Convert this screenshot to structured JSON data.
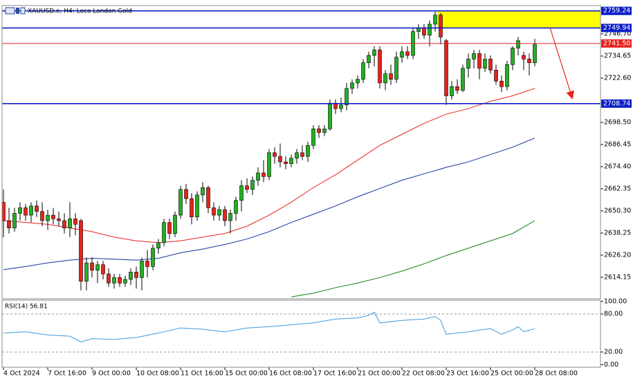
{
  "chart_data": [
    {
      "type": "candlestick",
      "title": "XAUUSD.e, H4: Loco London Gold",
      "categories": [
        "4 Oct 2024",
        null,
        null,
        null,
        null,
        null,
        null,
        null,
        "7 Oct 16:00",
        null,
        null,
        null,
        null,
        null,
        null,
        null,
        "9 Oct 00:00",
        null,
        null,
        null,
        null,
        null,
        null,
        null,
        "10 Oct 08:00",
        null,
        null,
        null,
        null,
        null,
        null,
        null,
        "11 Oct 16:00",
        null,
        null,
        null,
        null,
        null,
        null,
        null,
        "15 Oct 00:00",
        null,
        null,
        null,
        null,
        null,
        null,
        null,
        "16 Oct 08:00",
        null,
        null,
        null,
        null,
        null,
        null,
        null,
        "17 Oct 16:00",
        null,
        null,
        null,
        null,
        null,
        null,
        null,
        "21 Oct 00:00",
        null,
        null,
        null,
        null,
        null,
        null,
        null,
        "22 Oct 08:00",
        null,
        null,
        null,
        null,
        null,
        null,
        null,
        "23 Oct 16:00",
        null,
        null,
        null,
        null,
        null,
        null,
        null,
        "25 Oct 00:00",
        null,
        null,
        null,
        null,
        null,
        null,
        null,
        "28 Oct 08:00"
      ],
      "open": [
        2655,
        2645,
        2641,
        2649,
        2652,
        2648,
        2653,
        2650,
        2645,
        2648,
        2646,
        2645,
        2641,
        2646,
        2645,
        2612,
        2622,
        2618,
        2621,
        2616,
        2611,
        2614,
        2611,
        2613,
        2617,
        2614,
        2623,
        2620,
        2630,
        2633,
        2644,
        2638,
        2648,
        2662,
        2657,
        2647,
        2659,
        2663,
        2652,
        2648,
        2651,
        2645,
        2649,
        2656,
        2664,
        2662,
        2667,
        2671,
        2669,
        2682,
        2680,
        2677,
        2676,
        2679,
        2682,
        2680,
        2686,
        2695,
        2693,
        2695,
        2709,
        2706,
        2708,
        2717,
        2720,
        2722,
        2731,
        2735,
        2738,
        2720,
        2725,
        2722,
        2734,
        2737,
        2735,
        2748,
        2750,
        2746,
        2752,
        2757,
        2743,
        2713,
        2718,
        2716,
        2728,
        2733,
        2736,
        2728,
        2733,
        2727,
        2721,
        2718,
        2730,
        2739,
        2735,
        2733,
        2731
      ],
      "high": [
        2662,
        2652,
        2652,
        2655,
        2654,
        2655,
        2656,
        2655,
        2651,
        2652,
        2650,
        2649,
        2655,
        2649,
        2646,
        2625,
        2625,
        2623,
        2623,
        2619,
        2616,
        2616,
        2615,
        2619,
        2620,
        2625,
        2629,
        2632,
        2635,
        2646,
        2646,
        2650,
        2664,
        2665,
        2660,
        2661,
        2666,
        2664,
        2655,
        2653,
        2653,
        2651,
        2658,
        2667,
        2668,
        2669,
        2674,
        2678,
        2684,
        2685,
        2687,
        2680,
        2681,
        2684,
        2686,
        2688,
        2697,
        2697,
        2697,
        2711,
        2711,
        2712,
        2720,
        2722,
        2724,
        2733,
        2737,
        2740,
        2740,
        2727,
        2730,
        2737,
        2740,
        2740,
        2750,
        2752,
        2752,
        2754,
        2759,
        2758,
        2744,
        2721,
        2722,
        2730,
        2736,
        2738,
        2738,
        2736,
        2735,
        2730,
        2724,
        2732,
        2740,
        2745,
        2737,
        2736,
        2744
      ],
      "low": [
        2636,
        2638,
        2639,
        2645,
        2645,
        2644,
        2647,
        2642,
        2640,
        2643,
        2642,
        2638,
        2636,
        2637,
        2607,
        2607,
        2614,
        2611,
        2613,
        2609,
        2608,
        2609,
        2609,
        2610,
        2608,
        2607,
        2614,
        2618,
        2627,
        2631,
        2635,
        2636,
        2646,
        2654,
        2643,
        2645,
        2655,
        2649,
        2645,
        2645,
        2642,
        2638,
        2645,
        2650,
        2660,
        2659,
        2664,
        2666,
        2667,
        2676,
        2674,
        2673,
        2674,
        2676,
        2678,
        2677,
        2684,
        2690,
        2691,
        2694,
        2703,
        2704,
        2705,
        2714,
        2717,
        2720,
        2728,
        2729,
        2717,
        2716,
        2719,
        2720,
        2731,
        2733,
        2733,
        2744,
        2744,
        2740,
        2748,
        2741,
        2708,
        2711,
        2714,
        2715,
        2723,
        2728,
        2722,
        2726,
        2725,
        2719,
        2715,
        2716,
        2727,
        2735,
        2727,
        2724,
        2729
      ],
      "close": [
        2645,
        2641,
        2649,
        2652,
        2648,
        2653,
        2650,
        2645,
        2648,
        2646,
        2645,
        2641,
        2646,
        2643,
        2612,
        2622,
        2618,
        2621,
        2616,
        2611,
        2614,
        2611,
        2613,
        2617,
        2614,
        2623,
        2620,
        2630,
        2633,
        2644,
        2638,
        2648,
        2662,
        2657,
        2647,
        2659,
        2663,
        2652,
        2648,
        2651,
        2645,
        2649,
        2656,
        2664,
        2662,
        2667,
        2671,
        2669,
        2682,
        2680,
        2677,
        2676,
        2679,
        2682,
        2680,
        2686,
        2695,
        2693,
        2695,
        2709,
        2706,
        2708,
        2717,
        2720,
        2722,
        2731,
        2735,
        2738,
        2720,
        2725,
        2722,
        2734,
        2737,
        2735,
        2748,
        2750,
        2746,
        2752,
        2757,
        2745,
        2713,
        2718,
        2716,
        2728,
        2733,
        2736,
        2728,
        2733,
        2727,
        2721,
        2718,
        2730,
        2739,
        2743,
        2733,
        2731,
        2741
      ],
      "up_color": "#22b022",
      "down_color": "#e8231c",
      "series": [
        {
          "color": "#e8231c",
          "x": [
            0,
            4,
            8,
            12,
            16,
            20,
            24,
            28,
            32,
            36,
            40,
            44,
            48,
            52,
            56,
            60,
            64,
            68,
            72,
            76,
            80,
            84,
            88,
            92,
            96
          ],
          "values": [
            2645,
            2644,
            2643,
            2641,
            2639,
            2636,
            2634,
            2633,
            2634,
            2636,
            2638,
            2642,
            2648,
            2655,
            2663,
            2670,
            2678,
            2686,
            2692,
            2698,
            2703,
            2706,
            2710,
            2713,
            2717
          ]
        },
        {
          "color": "#1030a0",
          "x": [
            0,
            4,
            8,
            12,
            16,
            20,
            24,
            28,
            32,
            36,
            40,
            44,
            48,
            52,
            56,
            60,
            64,
            68,
            72,
            76,
            80,
            84,
            88,
            92,
            96
          ],
          "values": [
            2618.3,
            2620,
            2622,
            2623.5,
            2624.5,
            2624,
            2623.5,
            2624.5,
            2627.5,
            2629.5,
            2632,
            2635,
            2639,
            2644,
            2648.5,
            2653,
            2658,
            2662.5,
            2667,
            2670.5,
            2674,
            2677,
            2681,
            2685,
            2690
          ]
        },
        {
          "color": "#108010",
          "x": [
            52,
            56,
            60,
            64,
            68,
            72,
            76,
            80,
            84,
            88,
            92,
            96
          ],
          "values": [
            2603.5,
            2605.5,
            2608.5,
            2611,
            2614,
            2617.5,
            2621.5,
            2626,
            2630,
            2634,
            2638,
            2645
          ]
        }
      ],
      "levels": [
        {
          "value": 2759.24,
          "color": "#0a1ec8"
        },
        {
          "value": 2749.94,
          "color": "#0a1ec8"
        },
        {
          "value": 2741.5,
          "label": "2741.50",
          "color": "#e8231c"
        },
        {
          "value": 2708.74,
          "color": "#0a1ec8"
        }
      ],
      "zone": {
        "from": 2749.94,
        "to": 2759.24,
        "color": "#ffff00"
      },
      "ylim": [
        2603.2,
        2761.4
      ],
      "yticks": [
        {
          "value": 2746.7,
          "label": "2746.70"
        },
        2734.65,
        {
          "value": 2722.6,
          "label": "2722.60"
        },
        {
          "value": 2698.5,
          "label": "2698.50"
        },
        2686.45,
        {
          "value": 2674.4,
          "label": "2674.40"
        },
        2662.35,
        {
          "value": 2650.3,
          "label": "2650.30"
        },
        2638.25,
        {
          "value": 2626.2,
          "label": "2626.20"
        },
        2614.15
      ]
    },
    {
      "type": "line",
      "title": "RSI(14) 56.81",
      "series": [
        {
          "color": "#3a9ad9",
          "x": [
            0,
            4,
            8,
            12,
            14,
            16,
            20,
            24,
            28,
            32,
            36,
            40,
            44,
            48,
            52,
            56,
            60,
            64,
            66,
            67,
            68,
            72,
            76,
            78,
            79,
            80,
            84,
            88,
            90,
            92,
            93,
            94,
            96
          ],
          "values": [
            50,
            52,
            47,
            45,
            36,
            41,
            40,
            43,
            50,
            58,
            56,
            52,
            58,
            60,
            63,
            66,
            72,
            74,
            78,
            83,
            66,
            70,
            72,
            76,
            70,
            48,
            52,
            57,
            48,
            55,
            60,
            52,
            56.81
          ]
        }
      ],
      "levels": [
        80,
        20
      ],
      "ylim": [
        0,
        100
      ],
      "yticks": [
        {
          "value": 100,
          "label": "100.00"
        },
        {
          "value": 80,
          "label": "80.00"
        },
        {
          "value": 20,
          "label": "20.00"
        },
        {
          "value": 0,
          "label": "0.00"
        }
      ]
    }
  ]
}
